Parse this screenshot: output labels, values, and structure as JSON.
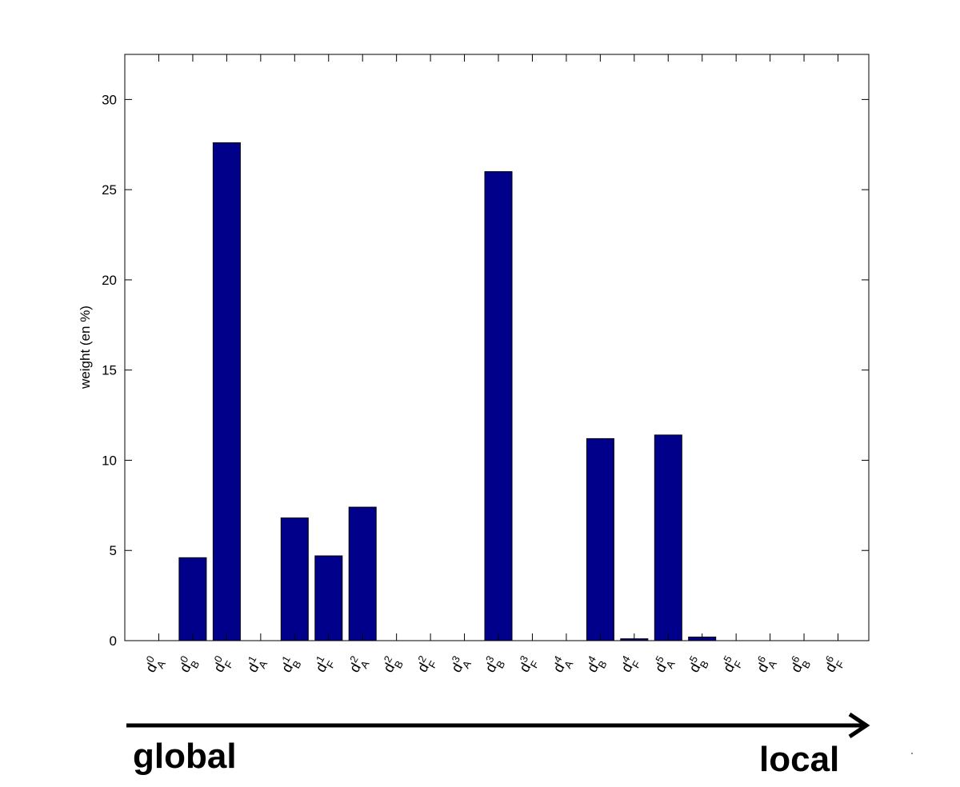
{
  "chart_data": {
    "type": "bar",
    "title": "",
    "xlabel": "",
    "ylabel": "weight (en %)",
    "ylim": [
      0,
      32.5
    ],
    "yticks": [
      0,
      5,
      10,
      15,
      20,
      25,
      30
    ],
    "grid": false,
    "bar_color": "#00008B",
    "categories": [
      {
        "base": "d",
        "sup": "0",
        "sub": "A"
      },
      {
        "base": "d",
        "sup": "0",
        "sub": "B"
      },
      {
        "base": "d",
        "sup": "0",
        "sub": "F"
      },
      {
        "base": "d",
        "sup": "1",
        "sub": "A"
      },
      {
        "base": "d",
        "sup": "1",
        "sub": "B"
      },
      {
        "base": "d",
        "sup": "1",
        "sub": "F"
      },
      {
        "base": "d",
        "sup": "2",
        "sub": "A"
      },
      {
        "base": "d",
        "sup": "2",
        "sub": "B"
      },
      {
        "base": "d",
        "sup": "2",
        "sub": "F"
      },
      {
        "base": "d",
        "sup": "3",
        "sub": "A"
      },
      {
        "base": "d",
        "sup": "3",
        "sub": "B"
      },
      {
        "base": "d",
        "sup": "3",
        "sub": "F"
      },
      {
        "base": "d",
        "sup": "4",
        "sub": "A"
      },
      {
        "base": "d",
        "sup": "4",
        "sub": "B"
      },
      {
        "base": "d",
        "sup": "4",
        "sub": "F"
      },
      {
        "base": "d",
        "sup": "5",
        "sub": "A"
      },
      {
        "base": "d",
        "sup": "5",
        "sub": "B"
      },
      {
        "base": "d",
        "sup": "5",
        "sub": "F"
      },
      {
        "base": "d",
        "sup": "6",
        "sub": "A"
      },
      {
        "base": "d",
        "sup": "6",
        "sub": "B"
      },
      {
        "base": "d",
        "sup": "6",
        "sub": "F"
      }
    ],
    "values": [
      0,
      4.6,
      27.6,
      0,
      6.8,
      4.7,
      7.4,
      0,
      0,
      0,
      26.0,
      0,
      0,
      11.2,
      0.1,
      11.4,
      0.2,
      0,
      0,
      0,
      0
    ]
  },
  "arrow": {
    "left_label": "global",
    "right_label": "local"
  }
}
